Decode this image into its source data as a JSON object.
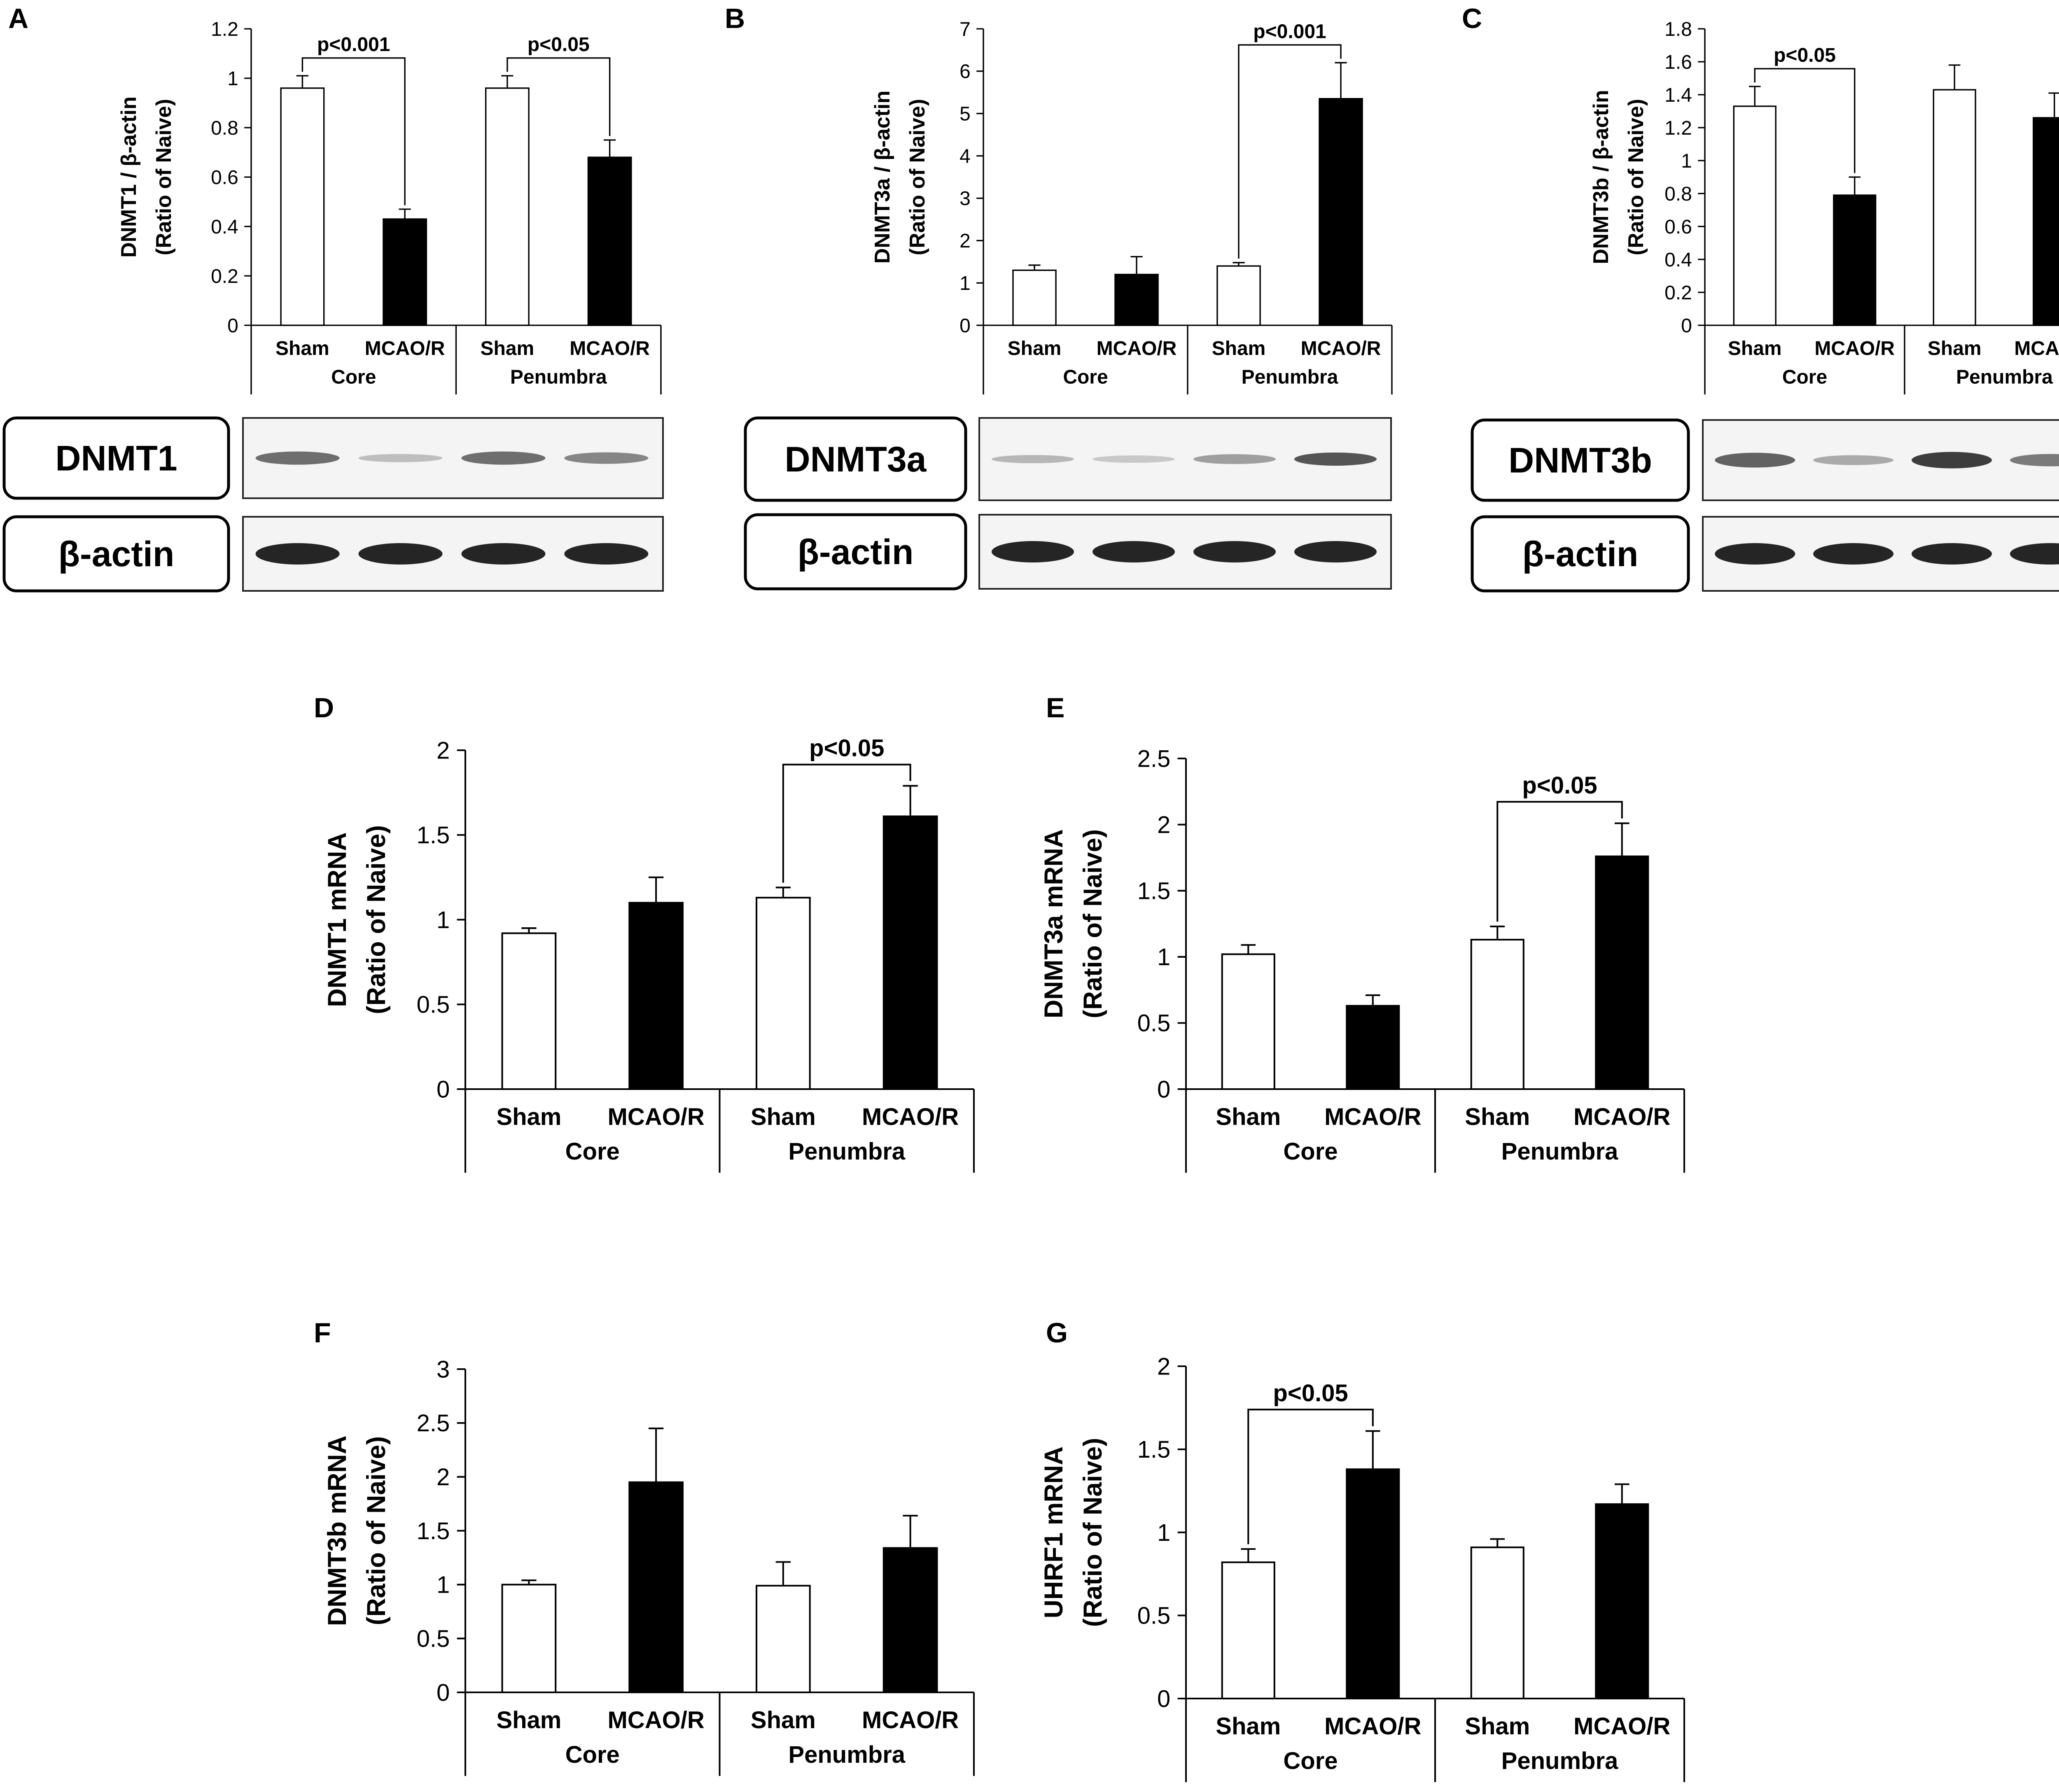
{
  "figure": {
    "panels": [
      "A",
      "B",
      "C",
      "D",
      "E",
      "F",
      "G"
    ]
  },
  "chart_data": [
    {
      "panel": "A",
      "type": "bar",
      "ylabel": [
        "DNMT1 / β-actin",
        "(Ratio of Naive)"
      ],
      "ylim": [
        0,
        1.2
      ],
      "yticks": [
        "0",
        "0.2",
        "0.4",
        "0.6",
        "0.8",
        "1",
        "1.2"
      ],
      "groups": [
        {
          "label": "Core",
          "categories": [
            "Sham",
            "MCAO/R"
          ]
        },
        {
          "label": "Penumbra",
          "categories": [
            "Sham",
            "MCAO/R"
          ]
        }
      ],
      "values": [
        0.96,
        0.43,
        0.96,
        0.68
      ],
      "errors": [
        0.05,
        0.04,
        0.05,
        0.07
      ],
      "fills": [
        "white",
        "black",
        "white",
        "black"
      ],
      "significance": [
        {
          "from": 0,
          "to": 1,
          "label": "p<0.001"
        },
        {
          "from": 2,
          "to": 3,
          "label": "p<0.05"
        }
      ],
      "blots": [
        {
          "label": "DNMT1"
        },
        {
          "label": "β-actin"
        }
      ]
    },
    {
      "panel": "B",
      "type": "bar",
      "ylabel": [
        "DNMT3a / β-actin",
        "(Ratio of Naive)"
      ],
      "ylim": [
        0,
        7
      ],
      "yticks": [
        "0",
        "1",
        "2",
        "3",
        "4",
        "5",
        "6",
        "7"
      ],
      "groups": [
        {
          "label": "Core",
          "categories": [
            "Sham",
            "MCAO/R"
          ]
        },
        {
          "label": "Penumbra",
          "categories": [
            "Sham",
            "MCAO/R"
          ]
        }
      ],
      "values": [
        1.3,
        1.2,
        1.4,
        5.35
      ],
      "errors": [
        0.12,
        0.42,
        0.08,
        0.85
      ],
      "fills": [
        "white",
        "black",
        "white",
        "black"
      ],
      "significance": [
        {
          "from": 2,
          "to": 3,
          "label": "p<0.001"
        }
      ],
      "blots": [
        {
          "label": "DNMT3a"
        },
        {
          "label": "β-actin"
        }
      ]
    },
    {
      "panel": "C",
      "type": "bar",
      "ylabel": [
        "DNMT3b / β-actin",
        "(Ratio of Naive)"
      ],
      "ylim": [
        0,
        1.8
      ],
      "yticks": [
        "0",
        "0.2",
        "0.4",
        "0.6",
        "0.8",
        "1",
        "1.2",
        "1.4",
        "1.6",
        "1.8"
      ],
      "groups": [
        {
          "label": "Core",
          "categories": [
            "Sham",
            "MCAO/R"
          ]
        },
        {
          "label": "Penumbra",
          "categories": [
            "Sham",
            "MCAO/R"
          ]
        }
      ],
      "values": [
        1.33,
        0.79,
        1.43,
        1.26
      ],
      "errors": [
        0.12,
        0.11,
        0.15,
        0.15
      ],
      "fills": [
        "white",
        "black",
        "white",
        "black"
      ],
      "significance": [
        {
          "from": 0,
          "to": 1,
          "label": "p<0.05"
        }
      ],
      "blots": [
        {
          "label": "DNMT3b"
        },
        {
          "label": "β-actin"
        }
      ]
    },
    {
      "panel": "D",
      "type": "bar",
      "ylabel": [
        "DNMT1 mRNA",
        "(Ratio of Naive)"
      ],
      "ylim": [
        0,
        2
      ],
      "yticks": [
        "0",
        "0.5",
        "1",
        "1.5",
        "2"
      ],
      "groups": [
        {
          "label": "Core",
          "categories": [
            "Sham",
            "MCAO/R"
          ]
        },
        {
          "label": "Penumbra",
          "categories": [
            "Sham",
            "MCAO/R"
          ]
        }
      ],
      "values": [
        0.92,
        1.1,
        1.13,
        1.61
      ],
      "errors": [
        0.03,
        0.15,
        0.06,
        0.18
      ],
      "fills": [
        "white",
        "black",
        "white",
        "black"
      ],
      "significance": [
        {
          "from": 2,
          "to": 3,
          "label": "p<0.05"
        }
      ]
    },
    {
      "panel": "E",
      "type": "bar",
      "ylabel": [
        "DNMT3a mRNA",
        "(Ratio of Naive)"
      ],
      "ylim": [
        0,
        2.5
      ],
      "yticks": [
        "0",
        "0.5",
        "1",
        "1.5",
        "2",
        "2.5"
      ],
      "groups": [
        {
          "label": "Core",
          "categories": [
            "Sham",
            "MCAO/R"
          ]
        },
        {
          "label": "Penumbra",
          "categories": [
            "Sham",
            "MCAO/R"
          ]
        }
      ],
      "values": [
        1.02,
        0.63,
        1.13,
        1.76
      ],
      "errors": [
        0.07,
        0.08,
        0.1,
        0.25
      ],
      "fills": [
        "white",
        "black",
        "white",
        "black"
      ],
      "significance": [
        {
          "from": 2,
          "to": 3,
          "label": "p<0.05"
        }
      ]
    },
    {
      "panel": "F",
      "type": "bar",
      "ylabel": [
        "DNMT3b mRNA",
        "(Ratio of Naive)"
      ],
      "ylim": [
        0,
        3
      ],
      "yticks": [
        "0",
        "0.5",
        "1",
        "1.5",
        "2",
        "2.5",
        "3"
      ],
      "groups": [
        {
          "label": "Core",
          "categories": [
            "Sham",
            "MCAO/R"
          ]
        },
        {
          "label": "Penumbra",
          "categories": [
            "Sham",
            "MCAO/R"
          ]
        }
      ],
      "values": [
        1.0,
        1.95,
        0.99,
        1.34
      ],
      "errors": [
        0.04,
        0.5,
        0.22,
        0.3
      ],
      "fills": [
        "white",
        "black",
        "white",
        "black"
      ],
      "significance": []
    },
    {
      "panel": "G",
      "type": "bar",
      "ylabel": [
        "UHRF1 mRNA",
        "(Ratio of Naive)"
      ],
      "ylim": [
        0,
        2
      ],
      "yticks": [
        "0",
        "0.5",
        "1",
        "1.5",
        "2"
      ],
      "groups": [
        {
          "label": "Core",
          "categories": [
            "Sham",
            "MCAO/R"
          ]
        },
        {
          "label": "Penumbra",
          "categories": [
            "Sham",
            "MCAO/R"
          ]
        }
      ],
      "values": [
        0.82,
        1.38,
        0.91,
        1.17
      ],
      "errors": [
        0.08,
        0.23,
        0.05,
        0.12
      ],
      "fills": [
        "white",
        "black",
        "white",
        "black"
      ],
      "significance": [
        {
          "from": 0,
          "to": 1,
          "label": "p<0.05"
        }
      ]
    }
  ]
}
